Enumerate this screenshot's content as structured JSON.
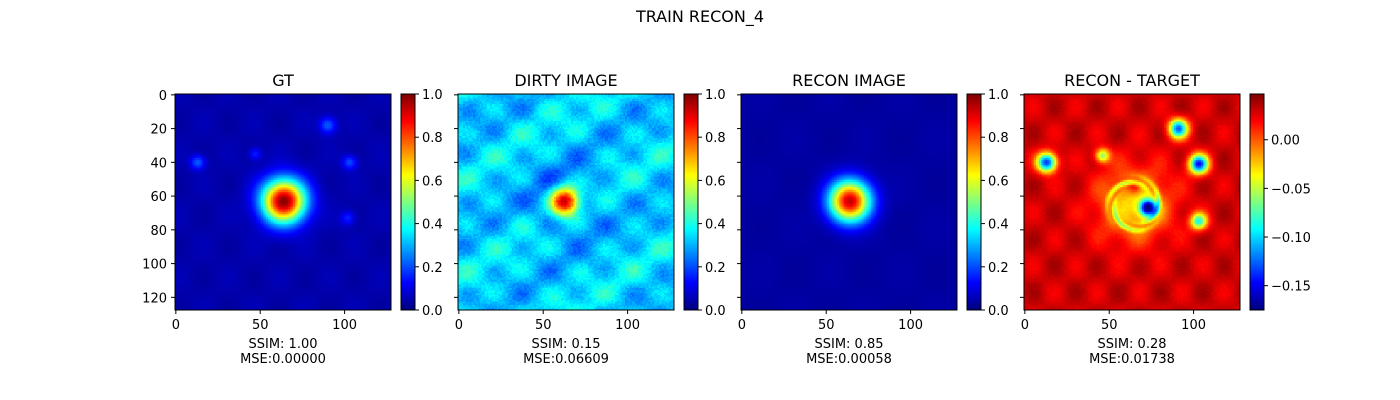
{
  "figure_title": "TRAIN RECON_4",
  "chart_data": [
    {
      "type": "heatmap",
      "title": "GT",
      "colormap": "jet",
      "image_size": [
        128,
        128
      ],
      "xticks": [
        0,
        50,
        100
      ],
      "yticks": [
        0,
        20,
        40,
        60,
        80,
        100,
        120
      ],
      "clim": [
        0.0,
        1.0
      ],
      "colorbar_ticks": [
        0.0,
        0.2,
        0.4,
        0.6,
        0.8,
        1.0
      ],
      "colorbar_tick_labels": [
        "0.0",
        "0.2",
        "0.4",
        "0.6",
        "0.8",
        "1.0"
      ],
      "caption_lines": [
        "SSIM: 1.00",
        "MSE:0.00000"
      ],
      "blobs": [
        {
          "x": 64,
          "y": 63,
          "sigma": 9,
          "amp": 0.95
        },
        {
          "x": 13,
          "y": 40,
          "sigma": 3,
          "amp": 0.18
        },
        {
          "x": 90,
          "y": 18,
          "sigma": 3.5,
          "amp": 0.18
        },
        {
          "x": 103,
          "y": 40,
          "sigma": 3,
          "amp": 0.16
        },
        {
          "x": 47,
          "y": 35,
          "sigma": 2.5,
          "amp": 0.12
        },
        {
          "x": 102,
          "y": 73,
          "sigma": 3,
          "amp": 0.12
        }
      ]
    },
    {
      "type": "heatmap",
      "title": "DIRTY IMAGE",
      "colormap": "jet",
      "image_size": [
        128,
        128
      ],
      "xticks": [
        0,
        50,
        100
      ],
      "yticks": [
        0,
        20,
        40,
        60,
        80,
        100,
        120
      ],
      "clim": [
        0.0,
        1.0
      ],
      "colorbar_ticks": [
        0.0,
        0.2,
        0.4,
        0.6,
        0.8,
        1.0
      ],
      "colorbar_tick_labels": [
        "0.0",
        "0.2",
        "0.4",
        "0.6",
        "0.8",
        "1.0"
      ],
      "caption_lines": [
        "SSIM: 0.15",
        "MSE:0.06609"
      ],
      "blobs": [
        {
          "x": 63,
          "y": 63,
          "sigma": 6,
          "amp": 0.7
        }
      ]
    },
    {
      "type": "heatmap",
      "title": "RECON IMAGE",
      "colormap": "jet",
      "image_size": [
        128,
        128
      ],
      "xticks": [
        0,
        50,
        100
      ],
      "yticks": [
        0,
        20,
        40,
        60,
        80,
        100,
        120
      ],
      "clim": [
        0.0,
        1.0
      ],
      "colorbar_ticks": [
        0.0,
        0.2,
        0.4,
        0.6,
        0.8,
        1.0
      ],
      "colorbar_tick_labels": [
        "0.0",
        "0.2",
        "0.4",
        "0.6",
        "0.8",
        "1.0"
      ],
      "caption_lines": [
        "SSIM: 0.85",
        "MSE:0.00058"
      ],
      "blobs": [
        {
          "x": 64,
          "y": 63,
          "sigma": 8.5,
          "amp": 0.9
        }
      ]
    },
    {
      "type": "heatmap",
      "title": "RECON - TARGET",
      "colormap": "jet",
      "image_size": [
        128,
        128
      ],
      "xticks": [
        0,
        50,
        100
      ],
      "yticks": [
        0,
        20,
        40,
        60,
        80,
        100,
        120
      ],
      "clim": [
        -0.175,
        0.047
      ],
      "colorbar_ticks": [
        0.0,
        -0.05,
        -0.1,
        -0.15
      ],
      "colorbar_tick_labels": [
        "0.00",
        "−0.05",
        "−0.10",
        "−0.15"
      ],
      "caption_lines": [
        "SSIM: 0.28",
        "MSE:0.01738"
      ],
      "blobs": [
        {
          "x": 13,
          "y": 40,
          "sigma": 4,
          "amp": -0.17
        },
        {
          "x": 91,
          "y": 20,
          "sigma": 4,
          "amp": -0.15
        },
        {
          "x": 103,
          "y": 41,
          "sigma": 4,
          "amp": -0.17
        },
        {
          "x": 46,
          "y": 36,
          "sigma": 3,
          "amp": -0.09
        },
        {
          "x": 103,
          "y": 75,
          "sigma": 3.5,
          "amp": -0.11
        },
        {
          "x": 73,
          "y": 67,
          "sigma": 3.5,
          "amp": -0.17
        },
        {
          "x": 65,
          "y": 55,
          "sigma": 3,
          "amp": 0.04
        },
        {
          "x": 65,
          "y": 65,
          "sigma": 15,
          "amp": -0.06
        }
      ]
    }
  ]
}
